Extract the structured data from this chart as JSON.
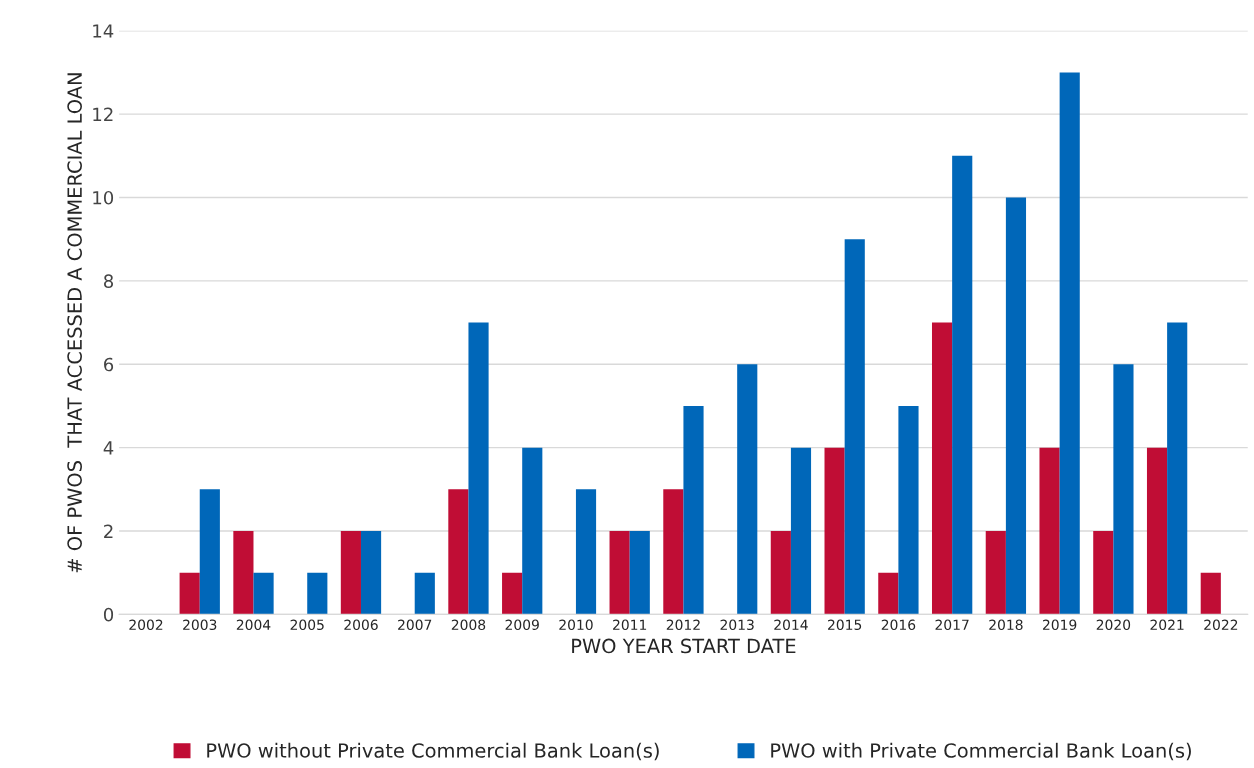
{
  "chart_data": {
    "type": "bar",
    "xlabel": "PWO YEAR START DATE",
    "ylabel": "# OF PWOS  THAT ACCESSED A COMMERCIAL LOAN",
    "categories": [
      "2002",
      "2003",
      "2004",
      "2005",
      "2006",
      "2007",
      "2008",
      "2009",
      "2010",
      "2011",
      "2012",
      "2013",
      "2014",
      "2015",
      "2016",
      "2017",
      "2018",
      "2019",
      "2020",
      "2021",
      "2022"
    ],
    "series": [
      {
        "name": "PWO without Private Commercial Bank Loan(s)",
        "color": "#c00d35",
        "values": [
          0,
          1,
          2,
          0,
          2,
          0,
          3,
          1,
          0,
          2,
          3,
          0,
          2,
          4,
          1,
          7,
          2,
          4,
          2,
          4,
          1
        ]
      },
      {
        "name": "PWO with Private Commercial Bank Loan(s)",
        "color": "#0067b9",
        "values": [
          0,
          3,
          1,
          1,
          2,
          1,
          7,
          4,
          3,
          2,
          5,
          6,
          4,
          9,
          5,
          11,
          10,
          13,
          6,
          7,
          0
        ]
      }
    ],
    "ylim": [
      0,
      14
    ],
    "yticks": [
      0,
      2,
      4,
      6,
      8,
      10,
      12,
      14
    ],
    "grid": "y",
    "legend": "bottom"
  }
}
